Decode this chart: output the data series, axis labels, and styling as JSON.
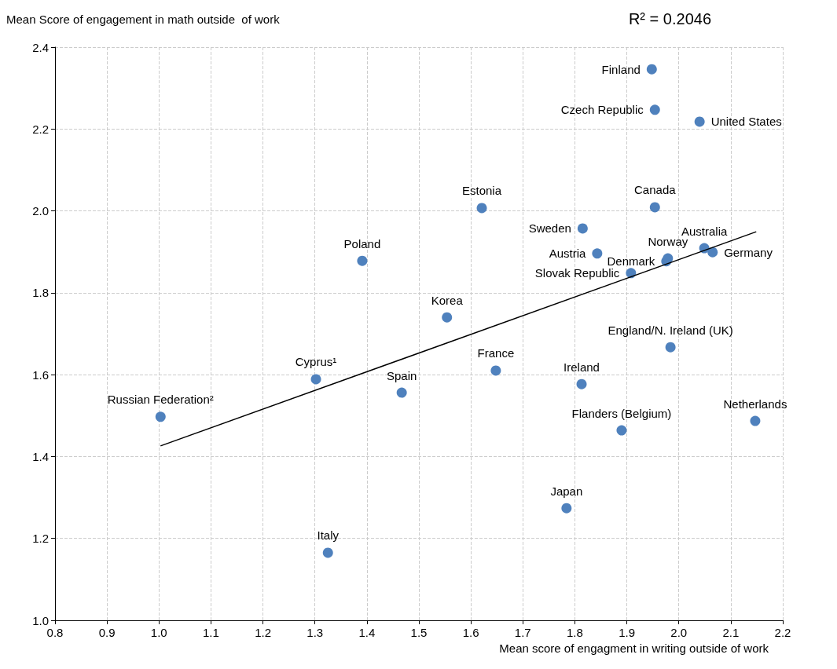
{
  "chart_data": {
    "type": "scatter",
    "xlabel": "Mean score of engagment in writing outside of work",
    "ylabel": "Mean Score of engagement in math outside  of work",
    "annotations": [
      "R² = 0.2046"
    ],
    "xlim": [
      0.8,
      2.2
    ],
    "xticks": [
      0.8,
      0.9,
      {
        "value": 1,
        "label": "1.0"
      },
      1.1,
      1.2,
      1.3,
      1.4,
      1.5,
      1.6,
      1.7,
      1.8,
      1.9,
      {
        "value": 2,
        "label": "2.0"
      },
      2.1,
      2.2
    ],
    "ylim": [
      1.0,
      2.4
    ],
    "yticks": [
      {
        "value": 1,
        "label": "1.0"
      },
      1.2,
      1.4,
      1.6,
      1.8,
      {
        "value": 2,
        "label": "2.0"
      },
      2.2,
      2.4
    ],
    "grid": true,
    "legend": false,
    "marker": "circle",
    "series": [
      {
        "name": "Finland",
        "color": "#4f81bd",
        "x": [
          1.948
        ],
        "values": [
          2.346
        ]
      },
      {
        "name": "Czech Republic",
        "color": "#4f81bd",
        "x": [
          1.954
        ],
        "values": [
          2.247
        ]
      },
      {
        "name": "United States",
        "color": "#4f81bd",
        "x": [
          2.04
        ],
        "values": [
          2.218
        ]
      },
      {
        "name": "Estonia",
        "color": "#4f81bd",
        "x": [
          1.621
        ],
        "values": [
          2.007
        ]
      },
      {
        "name": "Canada",
        "color": "#4f81bd",
        "x": [
          1.954
        ],
        "values": [
          2.009
        ]
      },
      {
        "name": "Sweden",
        "color": "#4f81bd",
        "x": [
          1.815
        ],
        "values": [
          1.957
        ]
      },
      {
        "name": "Poland",
        "color": "#4f81bd",
        "x": [
          1.391
        ],
        "values": [
          1.878
        ]
      },
      {
        "name": "Austria",
        "color": "#4f81bd",
        "x": [
          1.843
        ],
        "values": [
          1.896
        ]
      },
      {
        "name": "Denmark",
        "color": "#4f81bd",
        "x": [
          1.976
        ],
        "values": [
          1.877
        ]
      },
      {
        "name": "Norway",
        "color": "#4f81bd",
        "x": [
          1.979
        ],
        "values": [
          1.884
        ]
      },
      {
        "name": "Australia",
        "color": "#4f81bd",
        "x": [
          2.049
        ],
        "values": [
          1.909
        ]
      },
      {
        "name": "Germany",
        "color": "#4f81bd",
        "x": [
          2.065
        ],
        "values": [
          1.899
        ]
      },
      {
        "name": "Slovak Republic",
        "color": "#4f81bd",
        "x": [
          1.908
        ],
        "values": [
          1.848
        ]
      },
      {
        "name": "Korea",
        "color": "#4f81bd",
        "x": [
          1.554
        ],
        "values": [
          1.74
        ]
      },
      {
        "name": "England/N. Ireland (UK)",
        "color": "#4f81bd",
        "x": [
          1.984
        ],
        "values": [
          1.667
        ]
      },
      {
        "name": "France",
        "color": "#4f81bd",
        "x": [
          1.648
        ],
        "values": [
          1.61
        ]
      },
      {
        "name": "Ireland",
        "color": "#4f81bd",
        "x": [
          1.813
        ],
        "values": [
          1.577
        ]
      },
      {
        "name": "Cyprus¹",
        "color": "#4f81bd",
        "x": [
          1.302
        ],
        "values": [
          1.589
        ]
      },
      {
        "name": "Spain",
        "color": "#4f81bd",
        "x": [
          1.467
        ],
        "values": [
          1.556
        ]
      },
      {
        "name": "Russian Federation²",
        "color": "#4f81bd",
        "x": [
          1.003
        ],
        "values": [
          1.497
        ]
      },
      {
        "name": "Netherlands",
        "color": "#4f81bd",
        "x": [
          2.147
        ],
        "values": [
          1.487
        ]
      },
      {
        "name": "Flanders (Belgium)",
        "color": "#4f81bd",
        "x": [
          1.89
        ],
        "values": [
          1.464
        ]
      },
      {
        "name": "Japan",
        "color": "#4f81bd",
        "x": [
          1.784
        ],
        "values": [
          1.274
        ]
      },
      {
        "name": "Italy",
        "color": "#4f81bd",
        "x": [
          1.325
        ],
        "values": [
          1.165
        ]
      },
      {
        "type": "line",
        "marker": "none",
        "color": "#000000",
        "x": [
          1.003,
          2.149
        ],
        "values": [
          1.426,
          1.949
        ]
      }
    ]
  }
}
